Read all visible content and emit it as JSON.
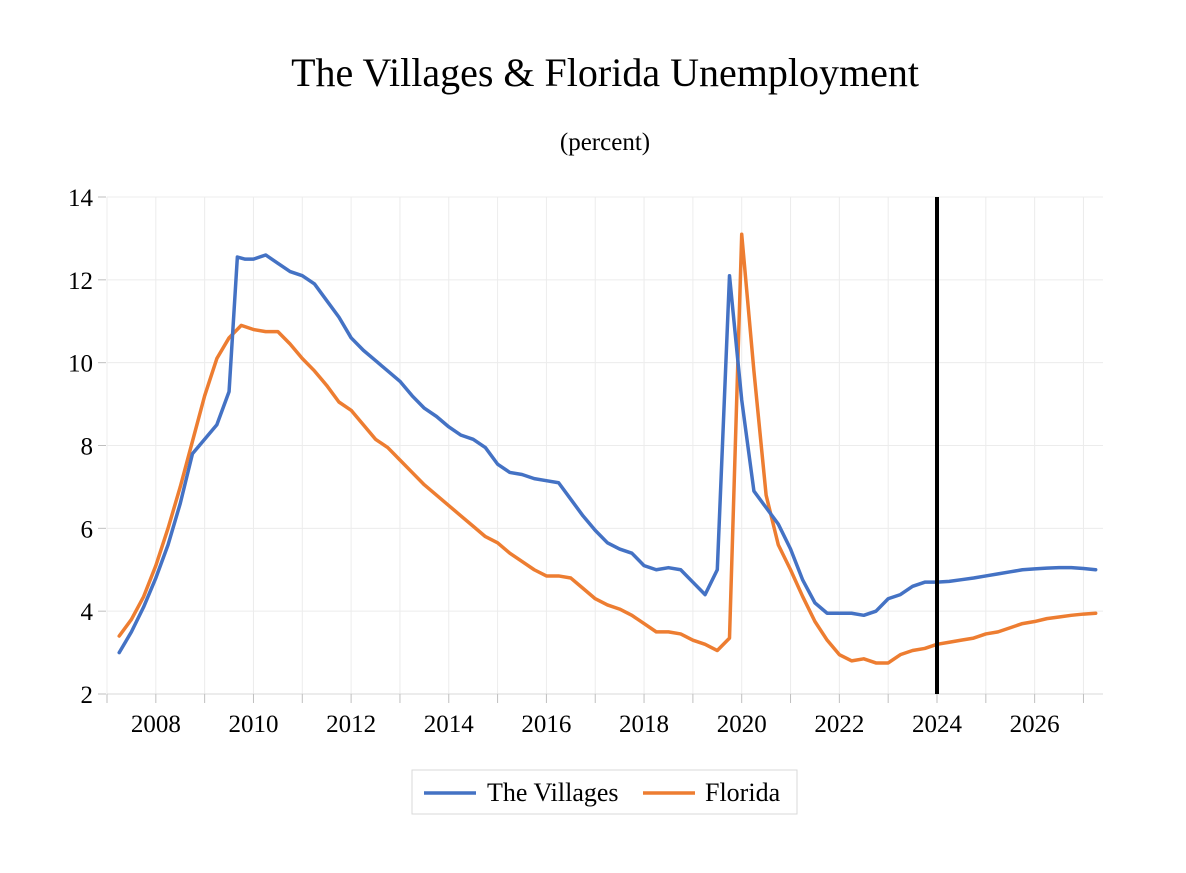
{
  "chart_data": {
    "type": "line",
    "title": "The Villages & Florida Unemployment",
    "subtitle": "(percent)",
    "xlabel": "",
    "ylabel": "",
    "xlim": [
      2007.0,
      2027.4
    ],
    "ylim": [
      2,
      14
    ],
    "y_ticks": [
      2,
      4,
      6,
      8,
      10,
      12,
      14
    ],
    "x_tick_labels": [
      "2008",
      "2010",
      "2012",
      "2014",
      "2016",
      "2018",
      "2020",
      "2022",
      "2024",
      "2026"
    ],
    "x_tick_positions": [
      2008,
      2010,
      2012,
      2014,
      2016,
      2018,
      2020,
      2022,
      2024,
      2026
    ],
    "grid": true,
    "legend_position": "bottom-center",
    "vertical_marker": 2024.0,
    "series": [
      {
        "name": "The Villages",
        "color": "#4472C4",
        "points": [
          [
            2007.25,
            3.0
          ],
          [
            2007.5,
            3.5
          ],
          [
            2007.75,
            4.1
          ],
          [
            2008.0,
            4.8
          ],
          [
            2008.25,
            5.6
          ],
          [
            2008.5,
            6.6
          ],
          [
            2008.75,
            7.8
          ],
          [
            2009.0,
            8.15
          ],
          [
            2009.25,
            8.5
          ],
          [
            2009.5,
            9.3
          ],
          [
            2009.67,
            12.55
          ],
          [
            2009.83,
            12.5
          ],
          [
            2010.0,
            12.5
          ],
          [
            2010.25,
            12.6
          ],
          [
            2010.5,
            12.4
          ],
          [
            2010.75,
            12.2
          ],
          [
            2011.0,
            12.1
          ],
          [
            2011.25,
            11.9
          ],
          [
            2011.5,
            11.5
          ],
          [
            2011.75,
            11.1
          ],
          [
            2012.0,
            10.6
          ],
          [
            2012.25,
            10.3
          ],
          [
            2012.5,
            10.05
          ],
          [
            2012.75,
            9.8
          ],
          [
            2013.0,
            9.55
          ],
          [
            2013.25,
            9.2
          ],
          [
            2013.5,
            8.9
          ],
          [
            2013.75,
            8.7
          ],
          [
            2014.0,
            8.45
          ],
          [
            2014.25,
            8.25
          ],
          [
            2014.5,
            8.15
          ],
          [
            2014.75,
            7.95
          ],
          [
            2015.0,
            7.55
          ],
          [
            2015.25,
            7.35
          ],
          [
            2015.5,
            7.3
          ],
          [
            2015.75,
            7.2
          ],
          [
            2016.0,
            7.15
          ],
          [
            2016.25,
            7.1
          ],
          [
            2016.5,
            6.7
          ],
          [
            2016.75,
            6.3
          ],
          [
            2017.0,
            5.95
          ],
          [
            2017.25,
            5.65
          ],
          [
            2017.5,
            5.5
          ],
          [
            2017.75,
            5.4
          ],
          [
            2018.0,
            5.1
          ],
          [
            2018.25,
            5.0
          ],
          [
            2018.5,
            5.05
          ],
          [
            2018.75,
            5.0
          ],
          [
            2019.0,
            4.7
          ],
          [
            2019.25,
            4.4
          ],
          [
            2019.5,
            5.0
          ],
          [
            2019.75,
            12.1
          ],
          [
            2020.0,
            9.1
          ],
          [
            2020.25,
            6.9
          ],
          [
            2020.5,
            6.5
          ],
          [
            2020.75,
            6.1
          ],
          [
            2021.0,
            5.5
          ],
          [
            2021.25,
            4.75
          ],
          [
            2021.5,
            4.2
          ],
          [
            2021.75,
            3.95
          ],
          [
            2022.0,
            3.95
          ],
          [
            2022.25,
            3.95
          ],
          [
            2022.5,
            3.9
          ],
          [
            2022.75,
            4.0
          ],
          [
            2023.0,
            4.3
          ],
          [
            2023.25,
            4.4
          ],
          [
            2023.5,
            4.6
          ],
          [
            2023.75,
            4.7
          ],
          [
            2024.0,
            4.7
          ],
          [
            2024.25,
            4.72
          ],
          [
            2024.5,
            4.76
          ],
          [
            2024.75,
            4.8
          ],
          [
            2025.0,
            4.85
          ],
          [
            2025.25,
            4.9
          ],
          [
            2025.5,
            4.95
          ],
          [
            2025.75,
            5.0
          ],
          [
            2026.0,
            5.02
          ],
          [
            2026.25,
            5.04
          ],
          [
            2026.5,
            5.05
          ],
          [
            2026.75,
            5.05
          ],
          [
            2027.0,
            5.03
          ],
          [
            2027.25,
            5.0
          ]
        ]
      },
      {
        "name": "Florida",
        "color": "#ED7D31",
        "points": [
          [
            2007.25,
            3.4
          ],
          [
            2007.5,
            3.8
          ],
          [
            2007.75,
            4.35
          ],
          [
            2008.0,
            5.1
          ],
          [
            2008.25,
            6.0
          ],
          [
            2008.5,
            7.0
          ],
          [
            2008.75,
            8.1
          ],
          [
            2009.0,
            9.2
          ],
          [
            2009.25,
            10.1
          ],
          [
            2009.5,
            10.6
          ],
          [
            2009.75,
            10.9
          ],
          [
            2010.0,
            10.8
          ],
          [
            2010.25,
            10.75
          ],
          [
            2010.5,
            10.75
          ],
          [
            2010.75,
            10.45
          ],
          [
            2011.0,
            10.1
          ],
          [
            2011.25,
            9.8
          ],
          [
            2011.5,
            9.45
          ],
          [
            2011.75,
            9.05
          ],
          [
            2012.0,
            8.85
          ],
          [
            2012.25,
            8.5
          ],
          [
            2012.5,
            8.15
          ],
          [
            2012.75,
            7.95
          ],
          [
            2013.0,
            7.65
          ],
          [
            2013.25,
            7.35
          ],
          [
            2013.5,
            7.05
          ],
          [
            2013.75,
            6.8
          ],
          [
            2014.0,
            6.55
          ],
          [
            2014.25,
            6.3
          ],
          [
            2014.5,
            6.05
          ],
          [
            2014.75,
            5.8
          ],
          [
            2015.0,
            5.65
          ],
          [
            2015.25,
            5.4
          ],
          [
            2015.5,
            5.2
          ],
          [
            2015.75,
            5.0
          ],
          [
            2016.0,
            4.85
          ],
          [
            2016.25,
            4.85
          ],
          [
            2016.5,
            4.8
          ],
          [
            2016.75,
            4.55
          ],
          [
            2017.0,
            4.3
          ],
          [
            2017.25,
            4.15
          ],
          [
            2017.5,
            4.05
          ],
          [
            2017.75,
            3.9
          ],
          [
            2018.0,
            3.7
          ],
          [
            2018.25,
            3.5
          ],
          [
            2018.5,
            3.5
          ],
          [
            2018.75,
            3.45
          ],
          [
            2019.0,
            3.3
          ],
          [
            2019.25,
            3.2
          ],
          [
            2019.5,
            3.05
          ],
          [
            2019.75,
            3.35
          ],
          [
            2020.0,
            13.1
          ],
          [
            2020.25,
            9.8
          ],
          [
            2020.5,
            6.8
          ],
          [
            2020.75,
            5.6
          ],
          [
            2021.0,
            5.0
          ],
          [
            2021.25,
            4.35
          ],
          [
            2021.5,
            3.75
          ],
          [
            2021.75,
            3.3
          ],
          [
            2022.0,
            2.95
          ],
          [
            2022.25,
            2.8
          ],
          [
            2022.5,
            2.85
          ],
          [
            2022.75,
            2.75
          ],
          [
            2023.0,
            2.75
          ],
          [
            2023.25,
            2.95
          ],
          [
            2023.5,
            3.05
          ],
          [
            2023.75,
            3.1
          ],
          [
            2024.0,
            3.2
          ],
          [
            2024.25,
            3.25
          ],
          [
            2024.5,
            3.3
          ],
          [
            2024.75,
            3.35
          ],
          [
            2025.0,
            3.45
          ],
          [
            2025.25,
            3.5
          ],
          [
            2025.5,
            3.6
          ],
          [
            2025.75,
            3.7
          ],
          [
            2026.0,
            3.75
          ],
          [
            2026.25,
            3.82
          ],
          [
            2026.5,
            3.86
          ],
          [
            2026.75,
            3.9
          ],
          [
            2027.0,
            3.93
          ],
          [
            2027.25,
            3.95
          ]
        ]
      }
    ]
  }
}
